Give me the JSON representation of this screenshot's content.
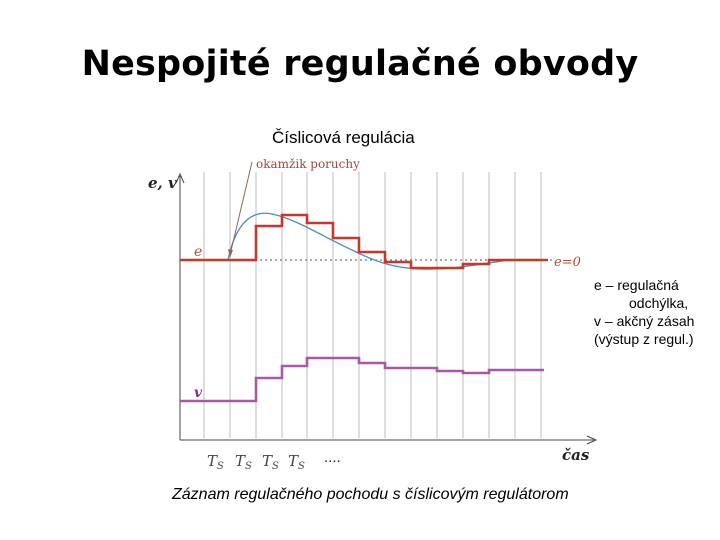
{
  "slide": {
    "title": "Nespojité regulačné obvody",
    "subtitle": "Číslicová regulácia",
    "caption": "Záznam regulačného pochodu s číslicovým regulátorom"
  },
  "diagram": {
    "y_axis_label": "e, v",
    "x_axis_label": "čas",
    "fault_label": "okamžik poruchy",
    "e_label": "e",
    "e_zero_label": "e=0",
    "v_label": "v",
    "ts_labels": [
      "T",
      "T",
      "T",
      "T"
    ],
    "ts_sub": "S",
    "ellipsis": "....",
    "colors": {
      "step": "#c8372d",
      "continuous": "#4a8cc4",
      "action": "#a958a8",
      "grid": "#bdbdbd"
    }
  },
  "legend": {
    "line1": "e –   regulačná",
    "line2": "odchýlka,",
    "line3": "v – akčný zásah",
    "line4": "(výstup z regul.)"
  }
}
